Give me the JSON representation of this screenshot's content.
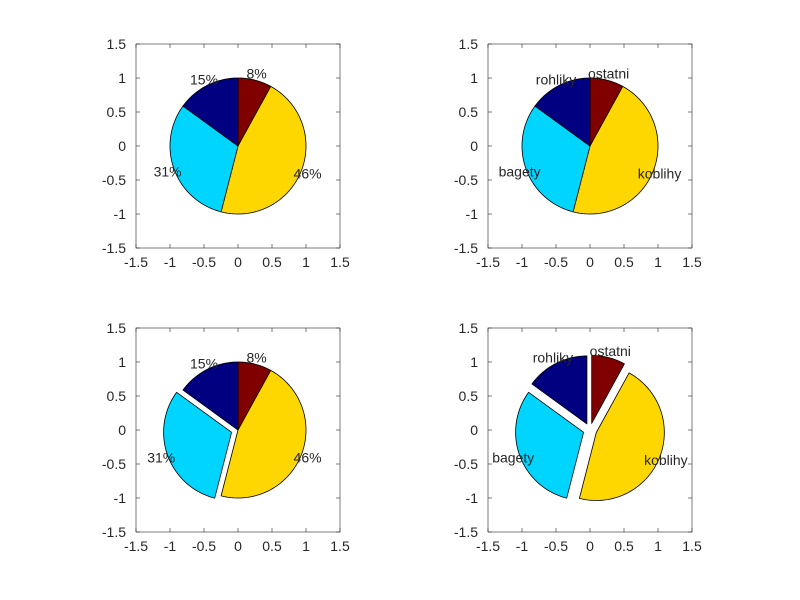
{
  "chart_data": [
    {
      "type": "pie",
      "xlim": [
        -1.5,
        1.5
      ],
      "ylim": [
        -1.5,
        1.5
      ],
      "xticks": [
        "-1.5",
        "-1",
        "-0.5",
        "0",
        "0.5",
        "1",
        "1.5"
      ],
      "yticks": [
        "1.5",
        "1",
        "0.5",
        "0",
        "-0.5",
        "-1",
        "-1.5"
      ],
      "grid": false,
      "slices": [
        {
          "value": 8,
          "label": "8%",
          "color": "#800000",
          "explode": false
        },
        {
          "value": 46,
          "label": "46%",
          "color": "#ffd700",
          "explode": false
        },
        {
          "value": 31,
          "label": "31%",
          "color": "#00d5ff",
          "explode": false
        },
        {
          "value": 15,
          "label": "15%",
          "color": "#000080",
          "explode": false
        }
      ]
    },
    {
      "type": "pie",
      "xlim": [
        -1.5,
        1.5
      ],
      "ylim": [
        -1.5,
        1.5
      ],
      "xticks": [
        "-1.5",
        "-1",
        "-0.5",
        "0",
        "0.5",
        "1",
        "1.5"
      ],
      "yticks": [
        "1.5",
        "1",
        "0.5",
        "0",
        "-0.5",
        "-1",
        "-1.5"
      ],
      "grid": false,
      "slices": [
        {
          "value": 8,
          "label": "ostatni",
          "color": "#800000",
          "explode": false
        },
        {
          "value": 46,
          "label": "koblihy",
          "color": "#ffd700",
          "explode": false
        },
        {
          "value": 31,
          "label": "bagety",
          "color": "#00d5ff",
          "explode": false
        },
        {
          "value": 15,
          "label": "rohliky",
          "color": "#000080",
          "explode": false
        }
      ]
    },
    {
      "type": "pie",
      "xlim": [
        -1.5,
        1.5
      ],
      "ylim": [
        -1.5,
        1.5
      ],
      "xticks": [
        "-1.5",
        "-1",
        "-0.5",
        "0",
        "0.5",
        "1",
        "1.5"
      ],
      "yticks": [
        "1.5",
        "1",
        "0.5",
        "0",
        "-0.5",
        "-1",
        "-1.5"
      ],
      "grid": false,
      "slices": [
        {
          "value": 8,
          "label": "8%",
          "color": "#800000",
          "explode": false
        },
        {
          "value": 46,
          "label": "46%",
          "color": "#ffd700",
          "explode": false
        },
        {
          "value": 31,
          "label": "31%",
          "color": "#00d5ff",
          "explode": true
        },
        {
          "value": 15,
          "label": "15%",
          "color": "#000080",
          "explode": false
        }
      ]
    },
    {
      "type": "pie",
      "xlim": [
        -1.5,
        1.5
      ],
      "ylim": [
        -1.5,
        1.5
      ],
      "xticks": [
        "-1.5",
        "-1",
        "-0.5",
        "0",
        "0.5",
        "1",
        "1.5"
      ],
      "yticks": [
        "1.5",
        "1",
        "0.5",
        "0",
        "-0.5",
        "-1",
        "-1.5"
      ],
      "grid": false,
      "slices": [
        {
          "value": 8,
          "label": "ostatni",
          "color": "#800000",
          "explode": true
        },
        {
          "value": 46,
          "label": "koblihy",
          "color": "#ffd700",
          "explode": true
        },
        {
          "value": 31,
          "label": "bagety",
          "color": "#00d5ff",
          "explode": true
        },
        {
          "value": 15,
          "label": "rohliky",
          "color": "#000080",
          "explode": true
        }
      ]
    }
  ]
}
